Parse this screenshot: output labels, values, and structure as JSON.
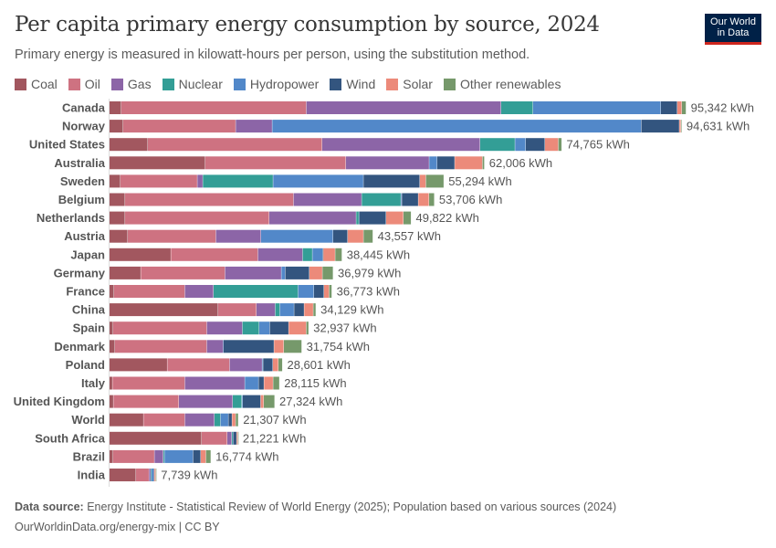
{
  "header": {
    "title": "Per capita primary energy consumption by source, 2024",
    "subtitle": "Primary energy is measured in kilowatt-hours per person, using the substitution method.",
    "logo_text": "Our World in Data"
  },
  "footer": {
    "source_label": "Data source:",
    "source_text": "Energy Institute - Statistical Review of World Energy (2025); Population based on various sources (2024)",
    "url_line": "OurWorldinData.org/energy-mix | CC BY"
  },
  "chart_data": {
    "type": "bar",
    "orientation": "horizontal",
    "stacked": true,
    "title": "Per capita primary energy consumption by source, 2024",
    "unit": "kWh",
    "legend_position": "top",
    "grid": false,
    "categories": [
      "Canada",
      "Norway",
      "United States",
      "Australia",
      "Sweden",
      "Belgium",
      "Netherlands",
      "Austria",
      "Japan",
      "Germany",
      "France",
      "China",
      "Spain",
      "Denmark",
      "Poland",
      "Italy",
      "United Kingdom",
      "World",
      "South Africa",
      "Brazil",
      "India"
    ],
    "totals": [
      "95,342 kWh",
      "94,631 kWh",
      "74,765 kWh",
      "62,006 kWh",
      "55,294 kWh",
      "53,706 kWh",
      "49,822 kWh",
      "43,557 kWh",
      "38,445 kWh",
      "36,979 kWh",
      "36,773 kWh",
      "34,129 kWh",
      "32,937 kWh",
      "31,754 kWh",
      "28,601 kWh",
      "28,115 kWh",
      "27,324 kWh",
      "21,307 kWh",
      "21,221 kWh",
      "16,774 kWh",
      "7,739 kWh"
    ],
    "series": [
      {
        "name": "Coal",
        "color": "#a2575f",
        "values": [
          1960,
          2260,
          6340,
          15840,
          1810,
          2570,
          2570,
          3020,
          10160,
          5180,
          750,
          17960,
          600,
          905,
          9560,
          500,
          650,
          5630,
          15240,
          600,
          4380
        ]
      },
      {
        "name": "Oil",
        "color": "#ce7281",
        "values": [
          30590,
          18610,
          28820,
          23240,
          12720,
          27870,
          23840,
          14580,
          14390,
          13930,
          11720,
          6340,
          15500,
          15190,
          10310,
          11970,
          10820,
          6840,
          4230,
          6840,
          2160
        ]
      },
      {
        "name": "Gas",
        "color": "#8c65a7",
        "values": [
          32190,
          6040,
          26110,
          13780,
          905,
          11260,
          14380,
          7450,
          7390,
          9310,
          4730,
          3110,
          5880,
          2710,
          5380,
          9910,
          8900,
          4880,
          750,
          1460,
          300
        ]
      },
      {
        "name": "Nuclear",
        "color": "#339e96",
        "values": [
          5280,
          0,
          5780,
          0,
          11620,
          6490,
          450,
          0,
          1610,
          0,
          13990,
          760,
          2770,
          0,
          0,
          0,
          1510,
          1010,
          200,
          200,
          100
        ]
      },
      {
        "name": "Hydropower",
        "color": "#5288c9",
        "values": [
          21130,
          61020,
          1770,
          1310,
          14940,
          150,
          50,
          11920,
          1710,
          650,
          2610,
          2360,
          1760,
          50,
          150,
          2270,
          150,
          1310,
          50,
          4730,
          350
        ]
      },
      {
        "name": "Wind",
        "color": "#33557f",
        "values": [
          2720,
          6280,
          3170,
          2910,
          9310,
          2720,
          4440,
          2410,
          100,
          3980,
          1660,
          1660,
          3120,
          8350,
          1610,
          900,
          2970,
          600,
          560,
          1260,
          150
        ]
      },
      {
        "name": "Solar",
        "color": "#ec8a7a",
        "values": [
          750,
          260,
          2220,
          4590,
          1010,
          1770,
          2870,
          2620,
          1960,
          2160,
          860,
          1510,
          2910,
          1610,
          910,
          1510,
          500,
          600,
          200,
          860,
          210
        ]
      },
      {
        "name": "Other renewables",
        "color": "#76996b",
        "values": [
          710,
          150,
          570,
          330,
          2970,
          890,
          1280,
          1560,
          1125,
          1770,
          450,
          430,
          400,
          2980,
          680,
          1050,
          1820,
          440,
          40,
          820,
          90
        ]
      }
    ]
  }
}
